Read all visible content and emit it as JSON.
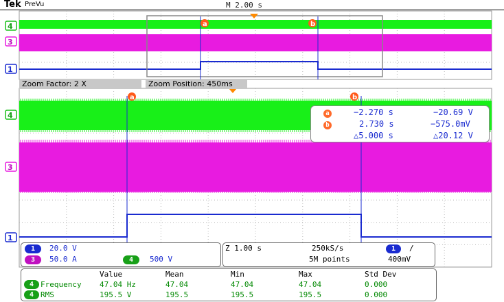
{
  "header": {
    "brand": "Tek",
    "mode": "PreVu",
    "timebase": "M 2.00 s"
  },
  "zoom": {
    "factor_label": "Zoom Factor: 2 X",
    "position_label": "Zoom Position: 450ms"
  },
  "channels": {
    "ch4": {
      "marker": "4",
      "color": "#18f018"
    },
    "ch3": {
      "marker": "3",
      "color": "#e81be0"
    },
    "ch1": {
      "marker": "1",
      "color": "#1a2bd0"
    }
  },
  "cursors": {
    "a_label": "a",
    "b_label": "b",
    "a_time": "−2.270 s",
    "a_value": "−20.69 V",
    "b_time": "2.730 s",
    "b_value": "−575.0mV",
    "delta_time": "△5.000 s",
    "delta_value": "△20.12 V"
  },
  "settings": {
    "ch1_num": "1",
    "ch1_scale": "20.0 V",
    "ch3_num": "3",
    "ch3_scale": "50.0 A",
    "ch4_num": "4",
    "ch4_scale": "500 V",
    "zoom_time": "Z 1.00 s",
    "sample_rate": "250kS/s",
    "record_length": "5M points",
    "trig_ch": "1",
    "trig_slope": "/",
    "trig_level": "400mV"
  },
  "measurements": {
    "headers": [
      "Value",
      "Mean",
      "Min",
      "Max",
      "Std Dev"
    ],
    "rows": [
      {
        "ch": "4",
        "name": "Frequency",
        "value": "47.04 Hz",
        "mean": "47.04",
        "min": "47.04",
        "max": "47.04",
        "std": "0.000"
      },
      {
        "ch": "4",
        "name": "RMS",
        "value": "195.5 V",
        "mean": "195.5",
        "min": "195.5",
        "max": "195.5",
        "std": "0.000"
      }
    ]
  }
}
